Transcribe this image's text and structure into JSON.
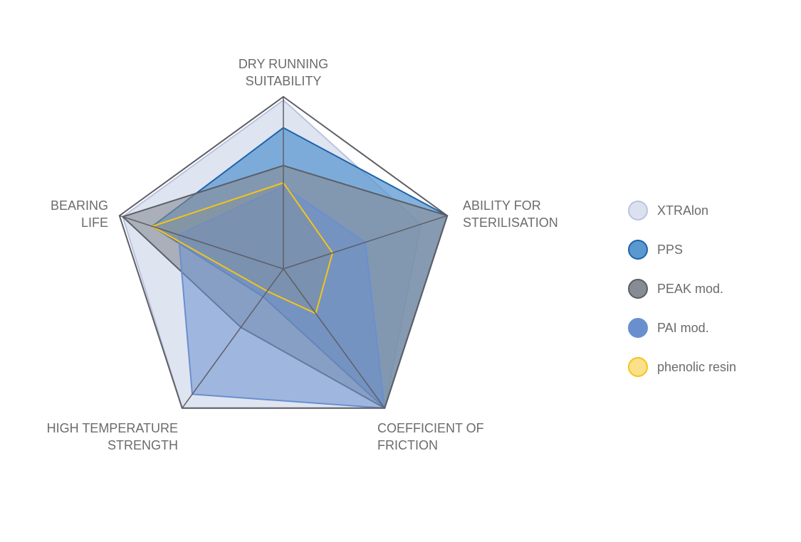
{
  "chart_data": {
    "type": "radar",
    "title": "",
    "scale": [
      0,
      5
    ],
    "axes": [
      {
        "label_lines": [
          "DRY RUNNING",
          "SUITABILITY"
        ]
      },
      {
        "label_lines": [
          "ABILITY FOR",
          "STERILISATION"
        ]
      },
      {
        "label_lines": [
          "COEFFICIENT OF",
          "FRICTION"
        ]
      },
      {
        "label_lines": [
          "HIGH TEMPERATURE",
          "STRENGTH"
        ]
      },
      {
        "label_lines": [
          "BEARING",
          "LIFE"
        ]
      }
    ],
    "series": [
      {
        "name": "XTRAlon",
        "values": [
          4.9,
          4.2,
          5.0,
          5.0,
          4.9
        ],
        "fill": "#dce1f0",
        "stroke": "#bac3e0",
        "fill_opacity": 0.9
      },
      {
        "name": "PPS",
        "values": [
          4.1,
          5.0,
          5.0,
          1.0,
          4.0
        ],
        "fill": "#5b98d0",
        "stroke": "#1f63a8",
        "fill_opacity": 0.75
      },
      {
        "name": "PEAK mod.",
        "values": [
          3.0,
          5.0,
          5.0,
          2.1,
          4.9
        ],
        "fill": "#878c94",
        "stroke": "#5a5e66",
        "fill_opacity": 0.6
      },
      {
        "name": "PAI mod.",
        "values": [
          2.4,
          2.5,
          5.0,
          4.5,
          3.2
        ],
        "fill": "#6a8fcf",
        "stroke": "#6a8fcf",
        "fill_opacity": 0.55
      },
      {
        "name": "phenolic resin",
        "values": [
          2.5,
          1.5,
          1.6,
          0.8,
          4.0
        ],
        "fill": "#8c8a7e",
        "stroke": "#f4c419",
        "fill_opacity": 0.25
      }
    ],
    "legend_position": "right",
    "frame_color": "#5e5f66"
  }
}
